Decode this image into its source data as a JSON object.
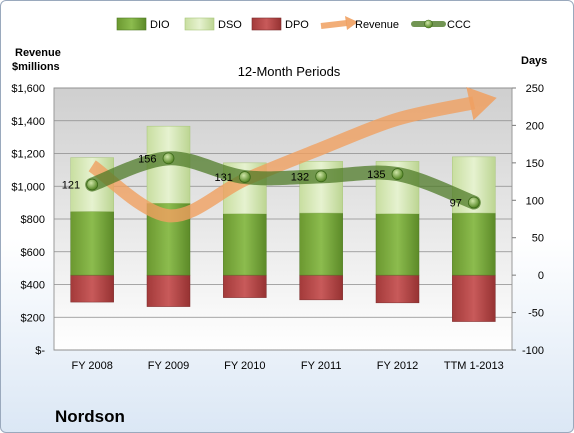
{
  "chart_data": {
    "type": "bar",
    "subtitle": "12-Month Periods",
    "company": "Nordson",
    "left_axis": {
      "label_line1": "Revenue",
      "label_line2": "$millions",
      "range": [
        0,
        1600
      ],
      "ticks": [
        "$-",
        "$200",
        "$400",
        "$600",
        "$800",
        "$1,000",
        "$1,200",
        "$1,400",
        "$1,600"
      ]
    },
    "right_axis": {
      "label": "Days",
      "range": [
        -100,
        250
      ],
      "ticks": [
        "-100",
        "-50",
        "0",
        "50",
        "100",
        "150",
        "200",
        "250"
      ]
    },
    "categories": [
      "FY 2008",
      "FY 2009",
      "FY 2010",
      "FY 2011",
      "FY 2012",
      "TTM 1-2013"
    ],
    "series": [
      {
        "name": "DIO",
        "type": "bar",
        "axis": "days",
        "color": "#77a53a",
        "values": [
          85,
          96,
          82,
          83,
          82,
          83
        ]
      },
      {
        "name": "DSO",
        "type": "bar",
        "axis": "days",
        "color": "#d6e8b6",
        "values": [
          72,
          103,
          68,
          69,
          70,
          75
        ]
      },
      {
        "name": "DPO",
        "type": "bar",
        "axis": "days",
        "color": "#b84545",
        "values": [
          -36,
          -42,
          -30,
          -33,
          -37,
          -62
        ]
      },
      {
        "name": "Revenue",
        "type": "line",
        "axis": "revenue",
        "color": "#f0a060",
        "values": [
          1125,
          820,
          1040,
          1230,
          1410,
          1510
        ]
      },
      {
        "name": "CCC",
        "type": "line",
        "axis": "days",
        "color": "#4f7b28",
        "values": [
          121,
          156,
          131,
          132,
          135,
          97
        ]
      }
    ],
    "ccc_labels": [
      "121",
      "156",
      "131",
      "132",
      "135",
      "97"
    ],
    "legend_position": "top",
    "grid": true
  }
}
